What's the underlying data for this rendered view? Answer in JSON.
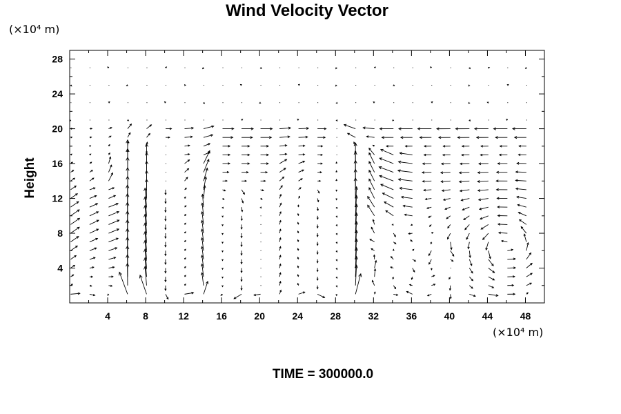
{
  "chart_data": {
    "type": "vector_field",
    "title": "Wind Velocity Vector",
    "ylabel": "Height",
    "xlabel": "",
    "y_unit": "(×10⁴ m)",
    "x_unit": "(×10⁴ m)",
    "footer": "TIME = 300000.0",
    "xlim": [
      0,
      50
    ],
    "ylim": [
      0,
      29
    ],
    "x_ticks": [
      4,
      8,
      12,
      16,
      20,
      24,
      28,
      32,
      36,
      40,
      44,
      48
    ],
    "y_ticks": [
      4,
      8,
      12,
      16,
      20,
      24,
      28
    ],
    "x_tick_labels": [
      "4",
      "8",
      "12",
      "16",
      "20",
      "24",
      "28",
      "32",
      "36",
      "40",
      "44",
      "48"
    ],
    "y_tick_labels": [
      "4",
      "8",
      "12",
      "16",
      "20",
      "24",
      "28"
    ],
    "grid": false,
    "field_description": "Arrow grid approx. 2x1 spacing; calm aloft (y>20), strong easterly jet near y=20 over x=31-50, westerly flow y=15-20 over x=13-27, narrow updraft columns near x=6, 8, 13, 30-31, circulation cell centered near x=46, y=6."
  }
}
